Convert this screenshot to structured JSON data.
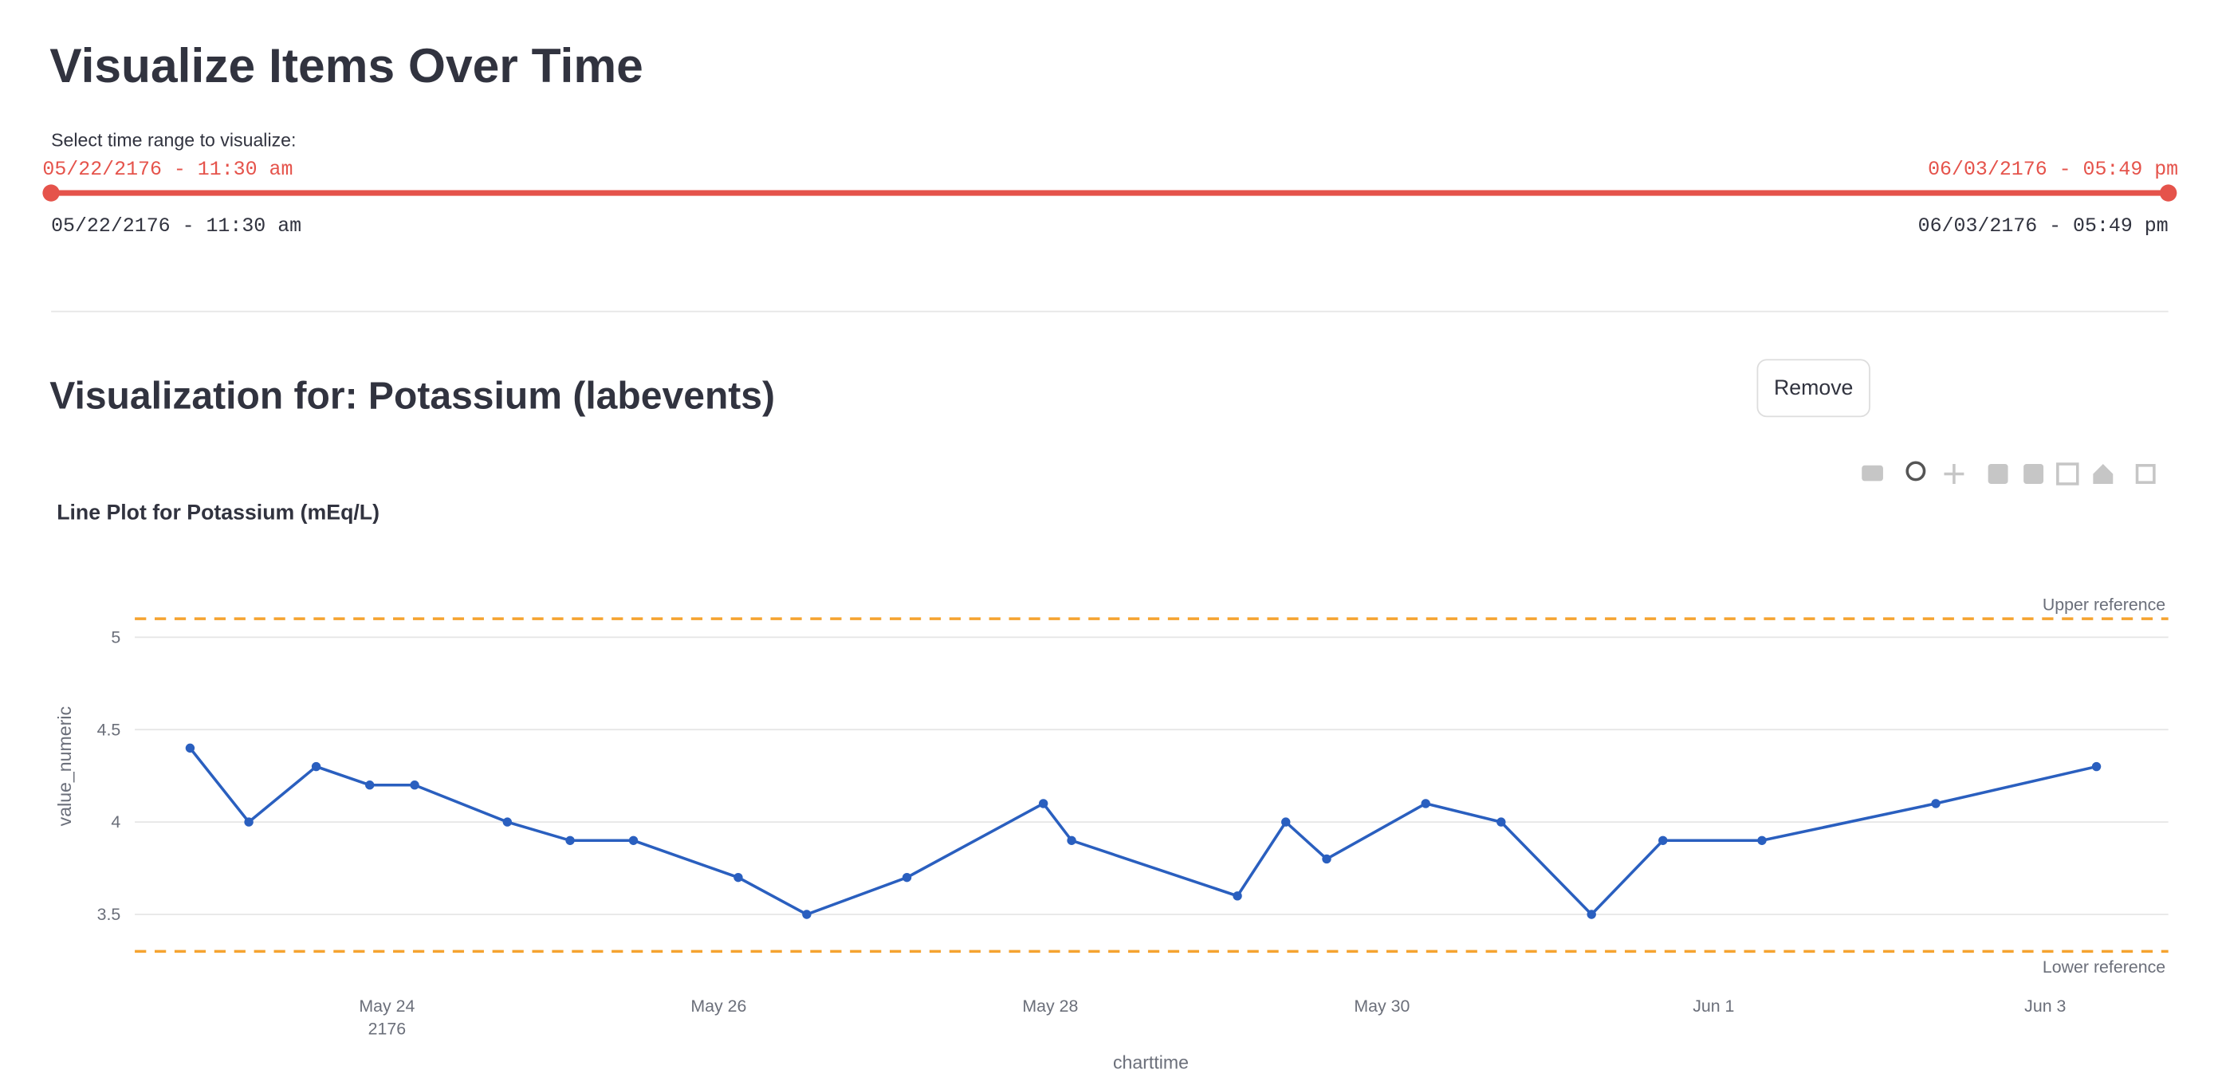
{
  "header": {
    "title": "Visualize Items Over Time"
  },
  "slider": {
    "label": "Select time range to visualize:",
    "start": "05/22/2176 - 11:30 am",
    "end": "06/03/2176 - 05:49 pm"
  },
  "section": {
    "title": "Visualization for: Potassium (labevents)",
    "button": "Remove"
  },
  "chart_data": {
    "type": "line",
    "title": "Line Plot for Potassium (mEq/L)",
    "x_label": "charttime",
    "y_label": "value_numeric",
    "color": "#2a5fbf",
    "x": [
      "2176-05-22T19:30",
      "2176-05-23T04:00",
      "2176-05-23T13:45",
      "2176-05-23T21:30",
      "2176-05-24T04:00",
      "2176-05-24T17:25",
      "2176-05-25T02:30",
      "2176-05-25T11:40",
      "2176-05-26T02:50",
      "2176-05-26T12:45",
      "2176-05-27T03:15",
      "2176-05-27T23:00",
      "2176-05-28T03:05",
      "2176-05-29T03:05",
      "2176-05-29T10:05",
      "2176-05-29T16:00",
      "2176-05-30T06:20",
      "2176-05-30T17:15",
      "2176-05-31T06:20",
      "2176-05-31T16:40",
      "2176-06-01T07:00",
      "2176-06-02T08:10",
      "2176-06-03T07:25"
    ],
    "values": [
      4.4,
      4.0,
      4.3,
      4.2,
      4.2,
      4.0,
      3.9,
      3.9,
      3.7,
      3.5,
      3.7,
      4.1,
      3.9,
      3.6,
      4.0,
      3.8,
      4.1,
      4.0,
      3.5,
      3.9,
      3.9,
      4.1,
      4.3
    ],
    "xlim": [
      "2176-05-22T11:30",
      "2176-06-03T17:49"
    ],
    "xticks": [
      {
        "value": "2176-05-24",
        "label": "May 24\n2176"
      },
      {
        "value": "2176-05-26",
        "label": "May 26"
      },
      {
        "value": "2176-05-28",
        "label": "May 28"
      },
      {
        "value": "2176-05-30",
        "label": "May 30"
      },
      {
        "value": "2176-06-01",
        "label": "Jun 1"
      },
      {
        "value": "2176-06-03",
        "label": "Jun 3"
      }
    ],
    "ylim": [
      3.15,
      5.3
    ],
    "yticks": [
      3.5,
      4,
      4.5,
      5
    ],
    "grid": true,
    "reference_lines": [
      {
        "label": "Upper reference",
        "value": 5.1,
        "color": "#f5a330"
      },
      {
        "label": "Lower reference",
        "value": 3.3,
        "color": "#f5a330"
      }
    ]
  }
}
